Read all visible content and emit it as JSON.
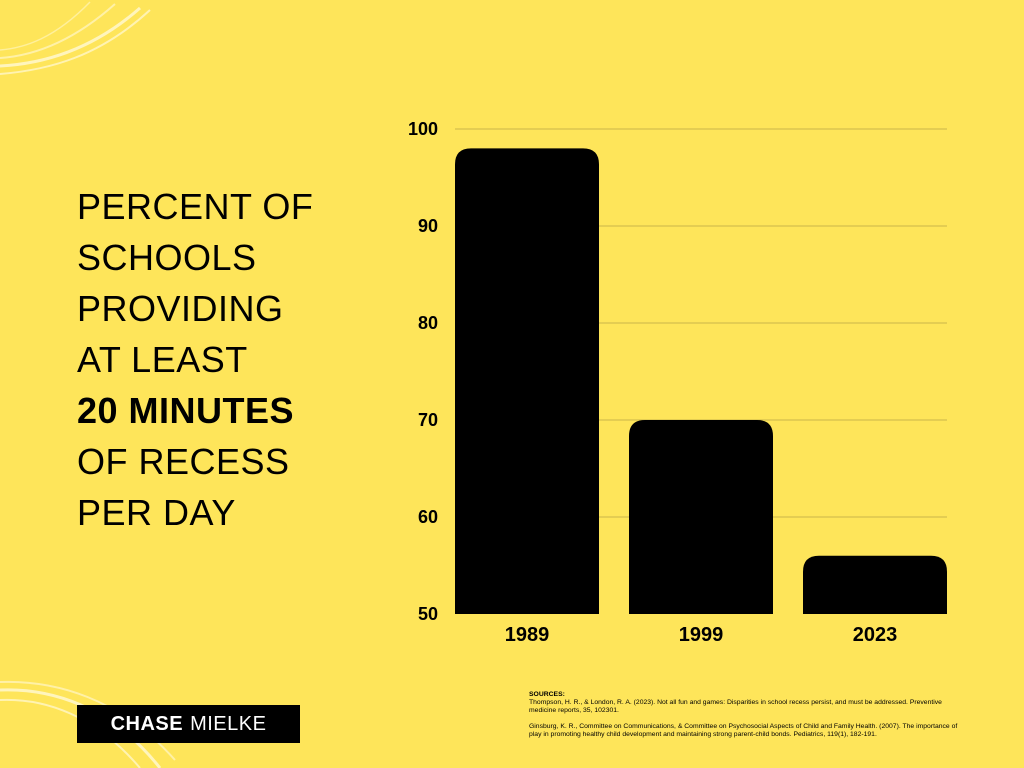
{
  "headline": {
    "lines": [
      "PERCENT OF",
      "SCHOOLS",
      "PROVIDING",
      "AT LEAST"
    ],
    "highlight": "20 MINUTES",
    "tail": [
      "OF RECESS",
      "PER DAY"
    ]
  },
  "chart_data": {
    "type": "bar",
    "categories": [
      "1989",
      "1999",
      "2023"
    ],
    "values": [
      98,
      70,
      56
    ],
    "ylim": [
      50,
      100
    ],
    "yticks": [
      "50",
      "60",
      "70",
      "80",
      "90",
      "100"
    ],
    "title": "",
    "xlabel": "",
    "ylabel": "",
    "bar_color": "#000000",
    "grid": true
  },
  "brand": {
    "first": "CHASE",
    "last": "MIELKE"
  },
  "sources": {
    "title": "SOURCES:",
    "refs": [
      "Thompson, H. R., & London, R. A. (2023). Not all fun and games: Disparities in school recess persist, and must be addressed. Preventive medicine reports, 35, 102301.",
      "Ginsburg, K. R., Committee on Communications, & Committee on Psychosocial Aspects of Child and Family Health. (2007). The importance of play in promoting healthy child development and maintaining strong parent-child bonds. Pediatrics, 119(1), 182-191."
    ]
  },
  "colors": {
    "background": "#FEE55A",
    "ink": "#000000",
    "brush": "#FFF6C8"
  }
}
